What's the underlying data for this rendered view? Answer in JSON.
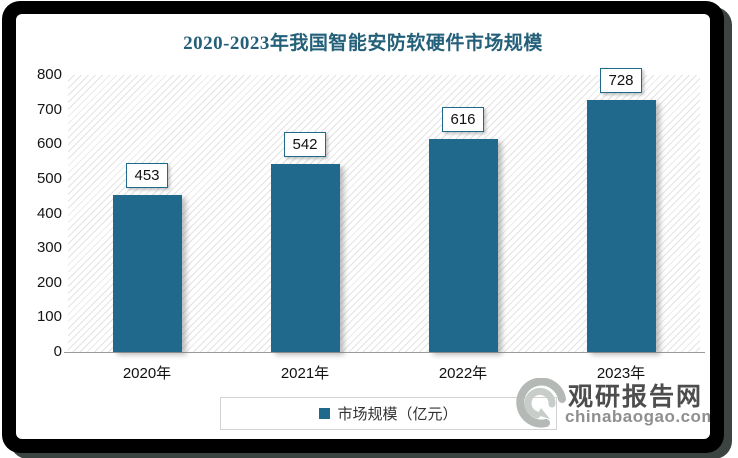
{
  "title": "2020-2023年我国智能安防软硬件市场规模",
  "legend": {
    "label": "市场规模（亿元）"
  },
  "watermark": {
    "logo": "swirl-logo",
    "site_name": "观研报告网",
    "site_url": "chinabaogao.com"
  },
  "colors": {
    "bar": "#20698C",
    "title": "#24607A",
    "axis_line": "#9b9b9b",
    "value_label_border": "#20698C"
  },
  "chart_data": {
    "type": "bar",
    "title": "2020-2023年我国智能安防软硬件市场规模",
    "categories": [
      "2020年",
      "2021年",
      "2022年",
      "2023年"
    ],
    "values": [
      453,
      542,
      616,
      728
    ],
    "series_name": "市场规模（亿元）",
    "xlabel": "",
    "ylabel": "",
    "ylim": [
      0,
      800
    ],
    "ytick_step": 100,
    "grid": false,
    "data_labels": true,
    "legend_position": "bottom",
    "plot_background": "diagonal-hatch"
  }
}
